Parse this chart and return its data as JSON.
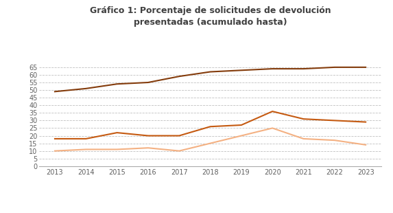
{
  "title_line1": "Gráfico 1: Porcentaje de solicitudes de devolución",
  "title_line2": "presentadas (acumulado hasta)",
  "years": [
    2013,
    2014,
    2015,
    2016,
    2017,
    2018,
    2019,
    2020,
    2021,
    2022,
    2023
  ],
  "mediados_de_abril": [
    10,
    11,
    11,
    12,
    10,
    15,
    20,
    25,
    18,
    17,
    14
  ],
  "final_de_abril": [
    18,
    18,
    22,
    20,
    20,
    26,
    27,
    36,
    31,
    30,
    29
  ],
  "final_de_mayo": [
    49,
    51,
    54,
    55,
    59,
    62,
    63,
    64,
    64,
    65,
    65
  ],
  "color_mediados": "#f4b183",
  "color_abril": "#c55a11",
  "color_mayo": "#843c0c",
  "ylim": [
    0,
    70
  ],
  "yticks": [
    0,
    5,
    10,
    15,
    20,
    25,
    30,
    35,
    40,
    45,
    50,
    55,
    60,
    65
  ],
  "background_color": "#ffffff",
  "grid_color": "#b0b0b0",
  "title_color": "#404040",
  "tick_color": "#606060"
}
